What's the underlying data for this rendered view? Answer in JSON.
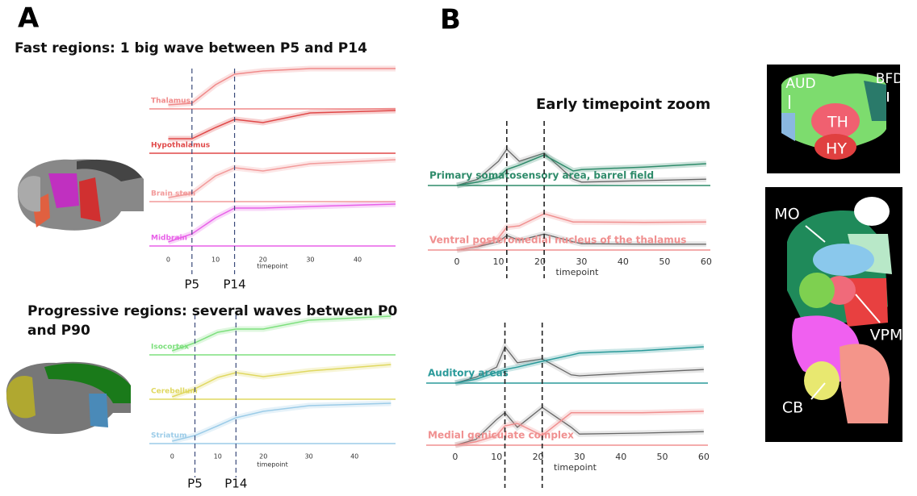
{
  "panels": [
    {
      "label": "A"
    },
    {
      "label": "B"
    }
  ],
  "images": [
    {
      "labels": [
        "AUD",
        "BFD",
        "TH",
        "HY"
      ]
    },
    {
      "labels": [
        "MO",
        "VPM",
        "CB"
      ]
    }
  ],
  "chart_data": [
    {
      "type": "line",
      "title": "Fast regions: 1 big wave between P5 and P14",
      "xlabel": "timepoint",
      "xlim": [
        -4,
        48
      ],
      "xticks": [
        0,
        10,
        20,
        30,
        40
      ],
      "markers": [
        5,
        14
      ],
      "marker_labels": [
        "P5",
        "P14"
      ],
      "x": [
        0,
        5,
        10,
        14,
        20,
        30,
        48
      ],
      "series": [
        {
          "name": "Thalamus",
          "color": "#f08a8a",
          "values": [
            0.1,
            0.14,
            0.6,
            0.86,
            0.94,
            1.0,
            1.0
          ]
        },
        {
          "name": "Hypothalamus",
          "color": "#e04848",
          "values": [
            0.36,
            0.36,
            0.64,
            0.84,
            0.76,
            1.0,
            1.06
          ]
        },
        {
          "name": "Brain stem",
          "color": "#f29a9a",
          "values": [
            0.1,
            0.2,
            0.64,
            0.84,
            0.76,
            0.94,
            1.04
          ]
        },
        {
          "name": "Midbrain",
          "color": "#e860e8",
          "values": [
            0.1,
            0.3,
            0.7,
            0.94,
            0.94,
            0.98,
            1.04
          ]
        }
      ]
    },
    {
      "type": "line",
      "title": "Progressive regions: several waves between P0 and P90",
      "xlabel": "timepoint",
      "xlim": [
        -5,
        49
      ],
      "xticks": [
        0,
        10,
        20,
        30,
        40
      ],
      "markers": [
        5,
        14
      ],
      "marker_labels": [
        "P5",
        "P14"
      ],
      "x": [
        0,
        5,
        10,
        14,
        20,
        30,
        48
      ],
      "series": [
        {
          "name": "Isocortex",
          "color": "#7ee07e",
          "values": [
            0.1,
            0.3,
            0.56,
            0.64,
            0.64,
            0.86,
            0.96
          ]
        },
        {
          "name": "Cerebellum",
          "color": "#e0d860",
          "values": [
            0.06,
            0.26,
            0.54,
            0.66,
            0.56,
            0.7,
            0.86
          ]
        },
        {
          "name": "Striatum",
          "color": "#9ccce8",
          "values": [
            0.06,
            0.2,
            0.44,
            0.64,
            0.8,
            0.94,
            1.0
          ]
        }
      ]
    },
    {
      "type": "line",
      "title": "Early timepoint zoom",
      "xlabel": "timepoint",
      "xlim": [
        -7,
        61
      ],
      "xticks": [
        0,
        10,
        20,
        30,
        40,
        50,
        60
      ],
      "markers": [
        12,
        21
      ],
      "x": [
        0,
        5,
        10,
        12,
        15,
        21,
        28,
        30,
        45,
        60
      ],
      "series": [
        {
          "name": "Primary somatosensory area, barrel field",
          "color": "#2e8b6a",
          "values": [
            0,
            0.07,
            0.17,
            0.33,
            0.42,
            0.63,
            0.3,
            0.33,
            0.38,
            0.45
          ],
          "reference_values": [
            0,
            0.13,
            0.5,
            0.75,
            0.5,
            0.67,
            0.13,
            0.07,
            0.1,
            0.13
          ]
        },
        {
          "name": "Ventral posteromedial nucleus of the thalamus",
          "color": "#f09090",
          "values": [
            0,
            0.08,
            0.25,
            0.47,
            0.5,
            0.75,
            0.58,
            0.58,
            0.57,
            0.58
          ],
          "reference_values": [
            0,
            0.07,
            0.17,
            0.3,
            0.2,
            0.33,
            0.17,
            0.13,
            0.12,
            0.12
          ]
        }
      ]
    },
    {
      "type": "line",
      "xlabel": "timepoint",
      "xlim": [
        -7,
        61
      ],
      "xticks": [
        0,
        10,
        20,
        30,
        40,
        50,
        60
      ],
      "markers": [
        12,
        21
      ],
      "x": [
        0,
        5,
        10,
        12,
        15,
        21,
        28,
        30,
        45,
        60
      ],
      "series": [
        {
          "name": "Auditory areas",
          "color": "#2a9a9a",
          "values": [
            0,
            0.08,
            0.22,
            0.28,
            0.33,
            0.45,
            0.58,
            0.62,
            0.67,
            0.75
          ],
          "reference_values": [
            0,
            0.12,
            0.33,
            0.75,
            0.42,
            0.5,
            0.17,
            0.15,
            0.22,
            0.28
          ]
        },
        {
          "name": "Medial geniculate complex",
          "color": "#f09090",
          "values": [
            0,
            0.07,
            0.2,
            0.4,
            0.45,
            0.2,
            0.67,
            0.67,
            0.67,
            0.7
          ],
          "reference_values": [
            0,
            0.12,
            0.53,
            0.67,
            0.37,
            0.78,
            0.37,
            0.23,
            0.25,
            0.28
          ]
        }
      ]
    }
  ]
}
